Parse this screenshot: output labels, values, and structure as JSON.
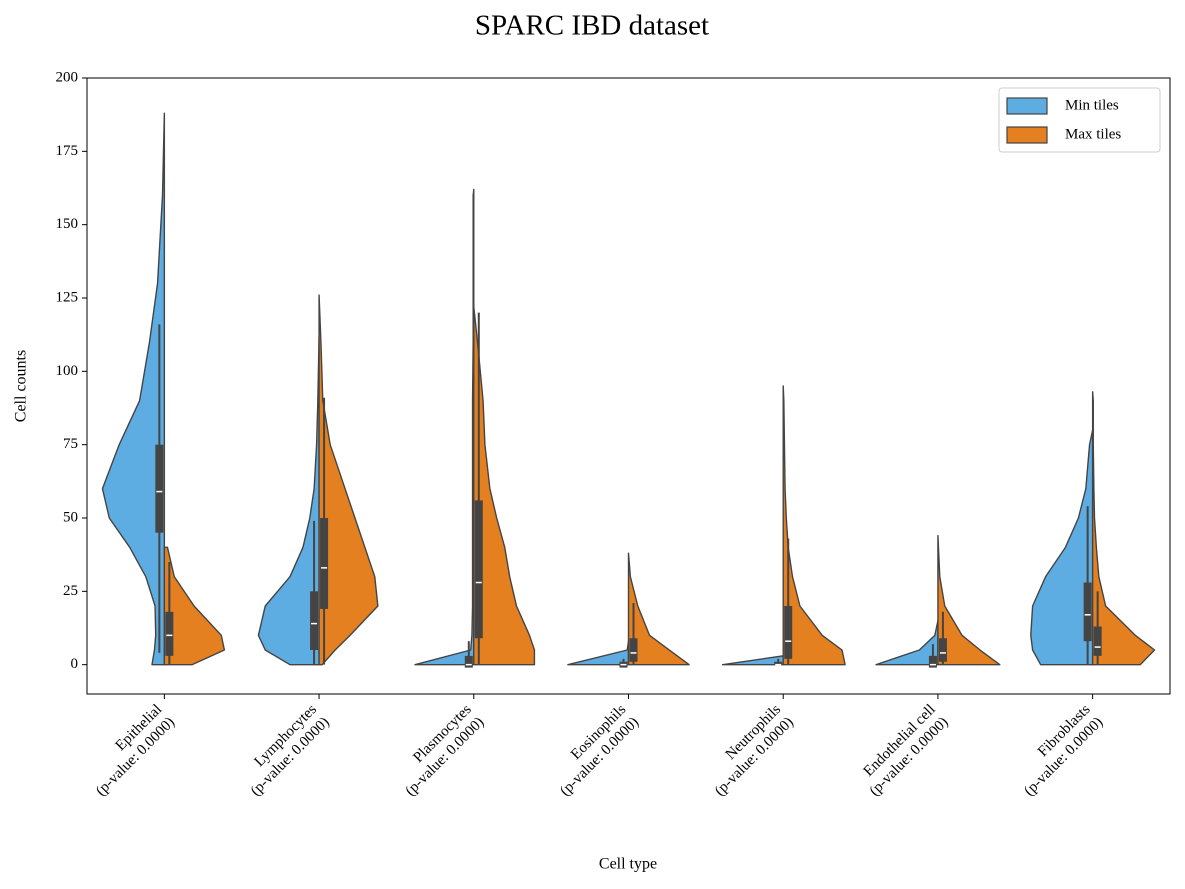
{
  "chart_data": {
    "type": "violin",
    "title": "SPARC IBD dataset",
    "xlabel": "Cell type",
    "ylabel": "Cell counts",
    "categories": [
      "Epithelial",
      "Lymphocytes",
      "Plasmocytes",
      "Eosinophils",
      "Neutrophils",
      "Endothelial cell",
      "Fibroblasts"
    ],
    "category_notes": [
      "(p-value: 0.0000)",
      "(p-value: 0.0000)",
      "(p-value: 0.0000)",
      "(p-value: 0.0000)",
      "(p-value: 0.0000)",
      "(p-value: 0.0000)",
      "(p-value: 0.0000)"
    ],
    "ylim": [
      -10,
      200
    ],
    "yticks": [
      0,
      25,
      50,
      75,
      100,
      125,
      150,
      175,
      200
    ],
    "legend": "upper right",
    "density_y": [
      0,
      5,
      10,
      20,
      30,
      40,
      50,
      60,
      75,
      90,
      110,
      130,
      160,
      190
    ],
    "series": [
      {
        "name": "Min tiles",
        "color": "#5dade2",
        "side": "left",
        "max": [
          188,
          112,
          162,
          8,
          3,
          15,
          80
        ],
        "density": [
          [
            0.2,
            0.16,
            0.14,
            0.15,
            0.3,
            0.56,
            0.89,
            1.0,
            0.73,
            0.4,
            0.24,
            0.11,
            0.03,
            null
          ],
          [
            0.47,
            0.87,
            0.98,
            0.87,
            0.47,
            0.26,
            0.15,
            0.08,
            0.04,
            0.02,
            null,
            null,
            null,
            null
          ],
          [
            0.95,
            0.05,
            0.03,
            0.02,
            0.02,
            0.02,
            0.02,
            0.02,
            0.02,
            0.02,
            0.01,
            0.01,
            0.01,
            null
          ],
          [
            0.98,
            0.02,
            null,
            null,
            null,
            null,
            null,
            null,
            null,
            null,
            null,
            null,
            null,
            null
          ],
          [
            0.98,
            null,
            null,
            null,
            null,
            null,
            null,
            null,
            null,
            null,
            null,
            null,
            null,
            null
          ],
          [
            1.0,
            0.3,
            0.05,
            null,
            null,
            null,
            null,
            null,
            null,
            null,
            null,
            null,
            null,
            null
          ],
          [
            0.84,
            0.97,
            1.0,
            0.97,
            0.76,
            0.44,
            0.23,
            0.11,
            0.05,
            null,
            null,
            null,
            null,
            null
          ]
        ],
        "q1": [
          45,
          5,
          -1,
          -1,
          0,
          -1,
          8
        ],
        "median": [
          59,
          14,
          0,
          0,
          0,
          0,
          17
        ],
        "q3": [
          75,
          25,
          3,
          1,
          1,
          3,
          28
        ],
        "whisker_low": [
          4,
          0,
          0,
          0,
          0,
          0,
          0
        ],
        "whisker_high": [
          116,
          49,
          8,
          2,
          2,
          7,
          54
        ]
      },
      {
        "name": "Max tiles",
        "color": "#e4801f",
        "side": "right",
        "max": [
          40,
          126,
          122,
          38,
          95,
          44,
          93
        ],
        "density": [
          [
            0.45,
            0.97,
            0.92,
            0.48,
            0.16,
            0.05,
            null,
            null,
            null,
            null,
            null,
            null,
            null,
            null
          ],
          [
            0.05,
            0.26,
            0.5,
            0.95,
            0.9,
            0.74,
            0.58,
            0.42,
            0.18,
            0.06,
            0.03,
            null,
            null,
            null
          ],
          [
            0.98,
            0.98,
            0.9,
            0.69,
            0.58,
            0.5,
            0.37,
            0.26,
            0.18,
            0.15,
            0.06,
            null,
            null,
            null
          ],
          [
            0.98,
            0.66,
            0.34,
            0.15,
            0.03,
            null,
            null,
            null,
            null,
            null,
            null,
            null,
            null,
            null
          ],
          [
            1.0,
            0.95,
            0.63,
            0.27,
            0.15,
            0.08,
            0.05,
            0.03,
            0.02,
            0.01,
            null,
            null,
            null,
            null
          ],
          [
            1.0,
            0.68,
            0.39,
            0.11,
            0.03,
            null,
            null,
            null,
            null,
            null,
            null,
            null,
            null,
            null
          ],
          [
            0.77,
            1.0,
            0.69,
            0.21,
            0.1,
            0.06,
            0.03,
            0.02,
            0.01,
            0.01,
            null,
            null,
            null,
            null
          ]
        ],
        "q1": [
          3,
          19,
          9,
          1,
          2,
          1,
          3
        ],
        "median": [
          10,
          33,
          28,
          4,
          8,
          4,
          6
        ],
        "q3": [
          18,
          50,
          56,
          9,
          20,
          9,
          13
        ],
        "whisker_low": [
          0,
          0,
          0,
          0,
          0,
          0,
          0
        ],
        "whisker_high": [
          35,
          91,
          120,
          21,
          43,
          18,
          25
        ]
      }
    ]
  }
}
